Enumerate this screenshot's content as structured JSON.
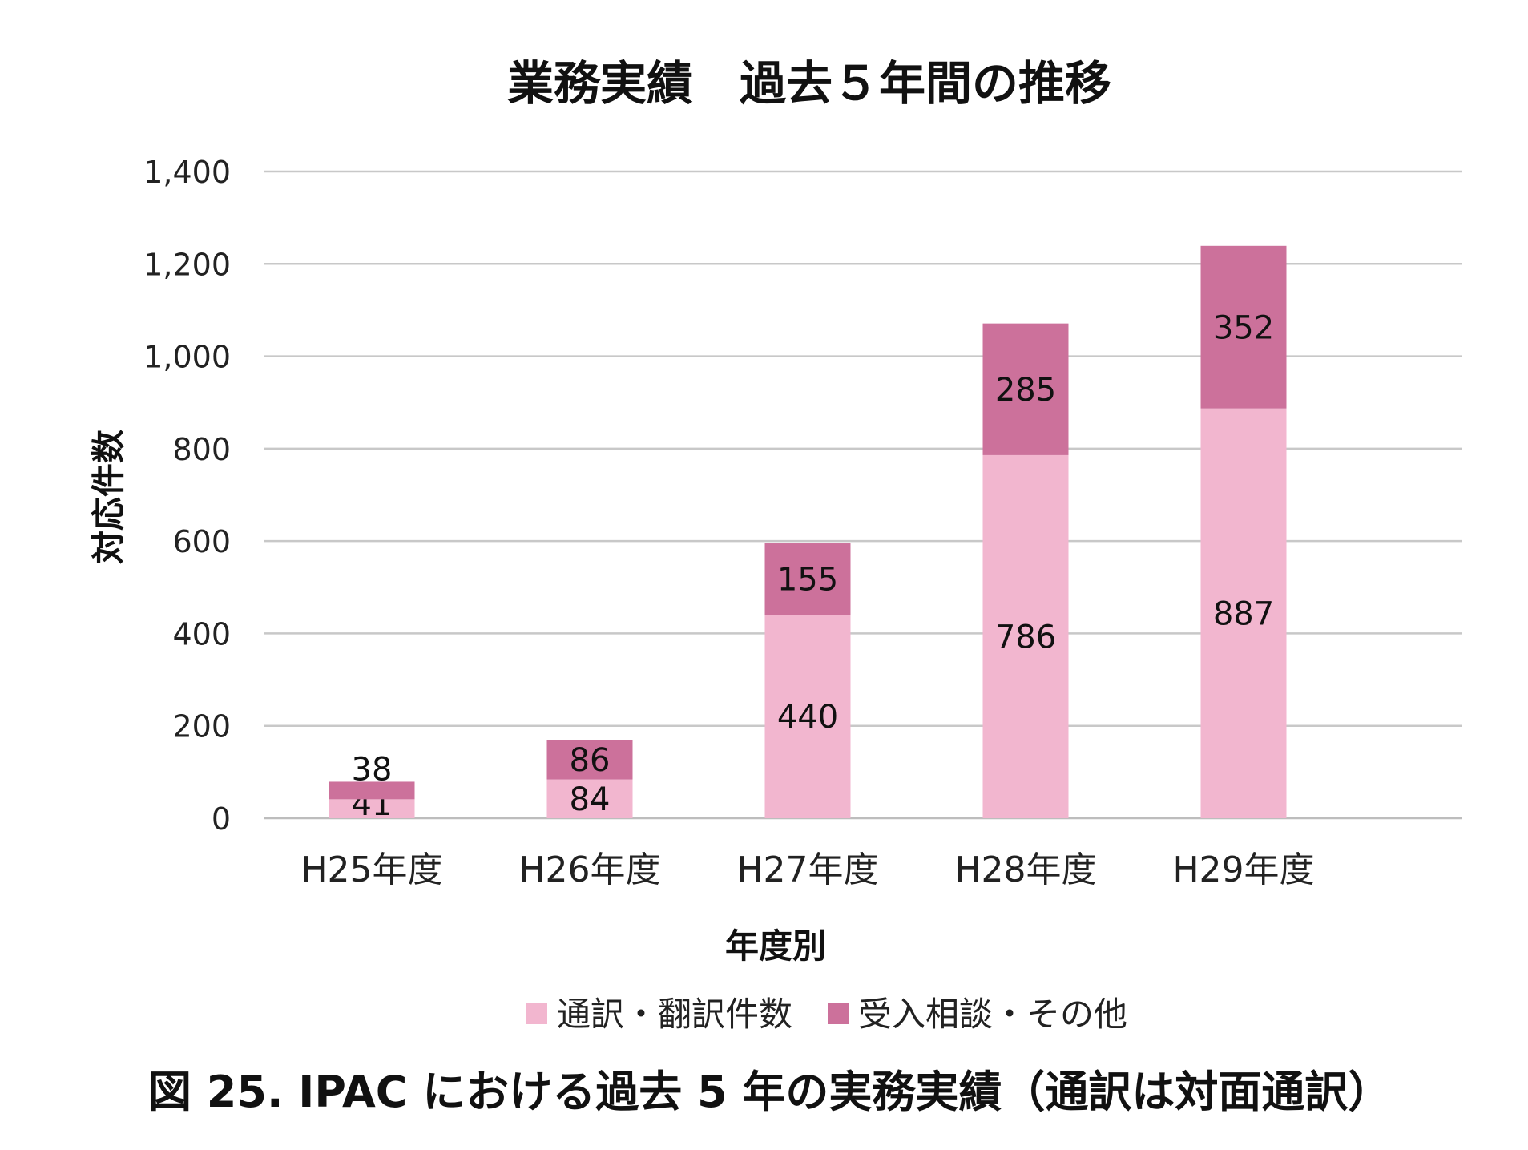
{
  "chart_data": {
    "type": "bar",
    "stacked": true,
    "title": "業務実績　過去５年間の推移",
    "xlabel": "年度別",
    "ylabel": "対応件数",
    "categories": [
      "H25年度",
      "H26年度",
      "H27年度",
      "H28年度",
      "H29年度"
    ],
    "series": [
      {
        "name": "通訳・翻訳件数",
        "color": "#f2b6cf",
        "values": [
          41,
          84,
          440,
          786,
          887
        ]
      },
      {
        "name": "受入相談・その他",
        "color": "#cc719b",
        "values": [
          38,
          86,
          155,
          285,
          352
        ]
      }
    ],
    "ylim": [
      0,
      1400
    ],
    "yticks": [
      0,
      200,
      400,
      600,
      800,
      1000,
      1200,
      1400
    ],
    "ytick_labels": [
      "0",
      "200",
      "400",
      "600",
      "800",
      "1,000",
      "1,200",
      "1,400"
    ],
    "grid": true,
    "legend_position": "bottom"
  },
  "caption": "図 25.  IPAC における過去 5 年の実務実績（通訳は対面通訳）"
}
